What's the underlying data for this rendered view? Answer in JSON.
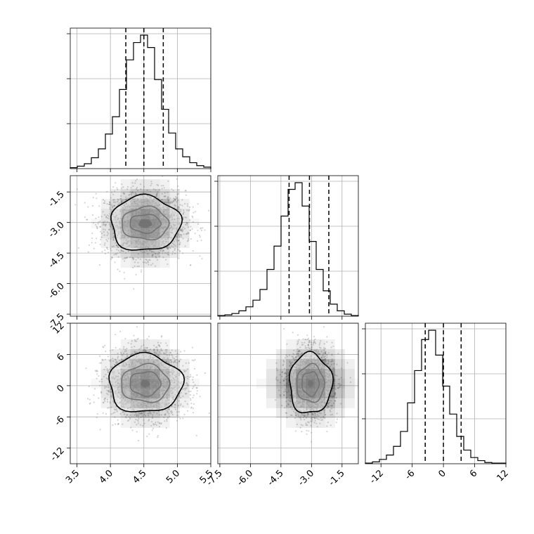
{
  "chart_data": {
    "type": "corner",
    "params": [
      "",
      "",
      ""
    ],
    "ticks": {
      "x0": [
        "3.5",
        "4.0",
        "4.5",
        "5.0",
        "5.5"
      ],
      "x1": [
        "-7.5",
        "-6.0",
        "-4.5",
        "-3.0",
        "-1.5"
      ],
      "x2": [
        "-12",
        "-6",
        "0",
        "6",
        "12"
      ],
      "y1": [
        "-1.5",
        "-3.0",
        "-4.5",
        "-6.0",
        "-7.5"
      ],
      "y2": [
        "12",
        "6",
        "0",
        "-6",
        "-12"
      ]
    },
    "tick_values": {
      "x0": [
        3.5,
        4.0,
        4.5,
        5.0,
        5.5
      ],
      "x1": [
        -7.5,
        -6.0,
        -4.5,
        -3.0,
        -1.5
      ],
      "x2": [
        -12,
        -6,
        0,
        6,
        12
      ]
    },
    "ranges": [
      [
        3.4,
        5.5
      ],
      [
        -7.6,
        -0.7
      ],
      [
        -15,
        12
      ]
    ],
    "quantiles": [
      [
        4.23,
        4.5,
        4.79
      ],
      [
        -4.1,
        -3.1,
        -2.15
      ],
      [
        -3.5,
        0.0,
        3.4
      ]
    ],
    "histograms": [
      {
        "bins": 20,
        "range": [
          3.4,
          5.5
        ],
        "counts": [
          2,
          5,
          10,
          22,
          40,
          70,
          105,
          160,
          220,
          255,
          270,
          245,
          180,
          120,
          72,
          40,
          24,
          12,
          6,
          3
        ]
      },
      {
        "bins": 20,
        "range": [
          -7.6,
          -0.7
        ],
        "counts": [
          1,
          2,
          4,
          8,
          14,
          24,
          40,
          70,
          105,
          150,
          190,
          200,
          165,
          112,
          70,
          38,
          18,
          8,
          3,
          1
        ]
      },
      {
        "bins": 20,
        "range": [
          -15,
          12
        ],
        "counts": [
          1,
          3,
          7,
          14,
          28,
          52,
          98,
          150,
          200,
          215,
          175,
          125,
          80,
          44,
          22,
          10,
          5,
          2,
          1,
          1
        ]
      }
    ],
    "centers": {
      "p10": [
        4.52,
        -3.05
      ],
      "p20": [
        4.52,
        0.4
      ],
      "p21": [
        -3.05,
        0.4
      ]
    },
    "contour_radii": {
      "p10": [
        [
          0.09,
          0.18
        ],
        [
          0.23,
          0.45
        ],
        [
          0.35,
          0.8
        ],
        [
          0.52,
          1.35
        ]
      ],
      "p20": [
        [
          0.06,
          0.6
        ],
        [
          0.23,
          2.3
        ],
        [
          0.36,
          3.6
        ],
        [
          0.55,
          5.6
        ]
      ],
      "p21": [
        [
          0.1,
          0.55
        ],
        [
          0.42,
          2.3
        ],
        [
          0.68,
          3.6
        ],
        [
          1.05,
          5.8
        ]
      ]
    },
    "grid": true,
    "colors": {
      "lines": "#000000",
      "grid": "#b0b0b0",
      "points": "#888888",
      "density": "#000000"
    }
  }
}
